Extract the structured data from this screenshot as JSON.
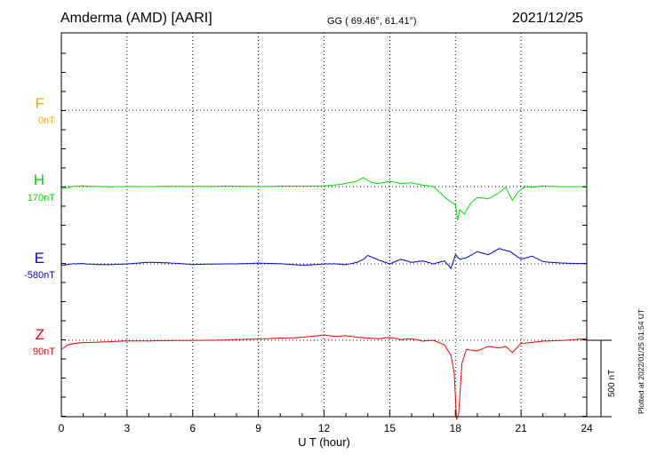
{
  "header": {
    "station": "Amderma (AMD)  [AARI]",
    "coords": "GG ( 69.46°,  61.41°)",
    "date": "2021/12/25"
  },
  "plotted_note": "Plotted at 2022/01/25 01:54 UT",
  "scale_bar": {
    "label": "500 nT",
    "value_nT": 500
  },
  "chart_data": {
    "type": "line",
    "xlabel": "U T (hour)",
    "xlim": [
      0,
      24
    ],
    "xticks": [
      "0",
      "3",
      "6",
      "9",
      "12",
      "15",
      "18",
      "21",
      "24"
    ],
    "components": [
      {
        "name": "F",
        "baseline": "0nT",
        "color": "#ffa500",
        "values": []
      },
      {
        "name": "H",
        "baseline": "170nT",
        "color": "#00dd00",
        "x": [
          0,
          0.5,
          1,
          2,
          3,
          4,
          5,
          6,
          7,
          8,
          9,
          10,
          11,
          12,
          12.5,
          13,
          13.5,
          13.8,
          14.0,
          14.2,
          14.5,
          15,
          15.5,
          16,
          16.5,
          17,
          17.3,
          17.6,
          17.8,
          18.0,
          18.1,
          18.2,
          18.4,
          18.7,
          19,
          19.5,
          20,
          20.3,
          20.6,
          20.9,
          21.2,
          21.5,
          22,
          23,
          24
        ],
        "values": [
          -15,
          0,
          5,
          0,
          2,
          0,
          2,
          0,
          1,
          2,
          0,
          3,
          4,
          5,
          10,
          20,
          35,
          60,
          40,
          25,
          20,
          35,
          20,
          25,
          10,
          0,
          -40,
          -80,
          -100,
          -120,
          -220,
          -150,
          -180,
          -110,
          -70,
          -80,
          -40,
          -5,
          -90,
          -30,
          0,
          -5,
          5,
          0,
          2
        ]
      },
      {
        "name": "E",
        "baseline": "-580nT",
        "color": "#0000cc",
        "x": [
          0,
          0.5,
          1,
          2,
          3,
          4,
          5,
          6,
          7,
          8,
          9,
          10,
          11,
          12,
          12.5,
          13,
          13.5,
          13.8,
          14.0,
          14.5,
          15,
          15.5,
          16,
          16.5,
          17,
          17.5,
          17.8,
          18.0,
          18.2,
          18.5,
          19,
          19.5,
          20,
          20.5,
          21,
          21.5,
          22,
          23,
          24
        ],
        "values": [
          -10,
          0,
          2,
          -5,
          0,
          10,
          5,
          -5,
          -2,
          0,
          5,
          2,
          -8,
          0,
          0,
          -5,
          10,
          30,
          55,
          25,
          0,
          30,
          10,
          20,
          0,
          20,
          -30,
          60,
          30,
          40,
          80,
          60,
          100,
          80,
          30,
          50,
          15,
          5,
          2
        ]
      },
      {
        "name": "Z",
        "baseline": "90nT",
        "color": "#ee0000",
        "x": [
          0,
          0.3,
          0.6,
          1,
          2,
          3,
          4,
          5,
          6,
          7,
          8,
          9,
          10,
          11,
          12,
          12.5,
          13,
          13.5,
          14,
          14.5,
          15,
          15.5,
          16,
          16.5,
          17,
          17.5,
          17.8,
          17.95,
          18.05,
          18.15,
          18.3,
          18.5,
          19,
          19.5,
          20,
          20.3,
          20.6,
          21,
          22,
          23,
          24
        ],
        "values": [
          -60,
          -30,
          -20,
          -15,
          -10,
          -5,
          -5,
          -3,
          -2,
          0,
          5,
          10,
          15,
          20,
          35,
          25,
          30,
          20,
          15,
          10,
          20,
          5,
          10,
          -5,
          0,
          -30,
          -100,
          -220,
          -520,
          -480,
          -150,
          -60,
          -70,
          -40,
          -50,
          -40,
          -80,
          -20,
          -5,
          0,
          10
        ]
      }
    ]
  }
}
